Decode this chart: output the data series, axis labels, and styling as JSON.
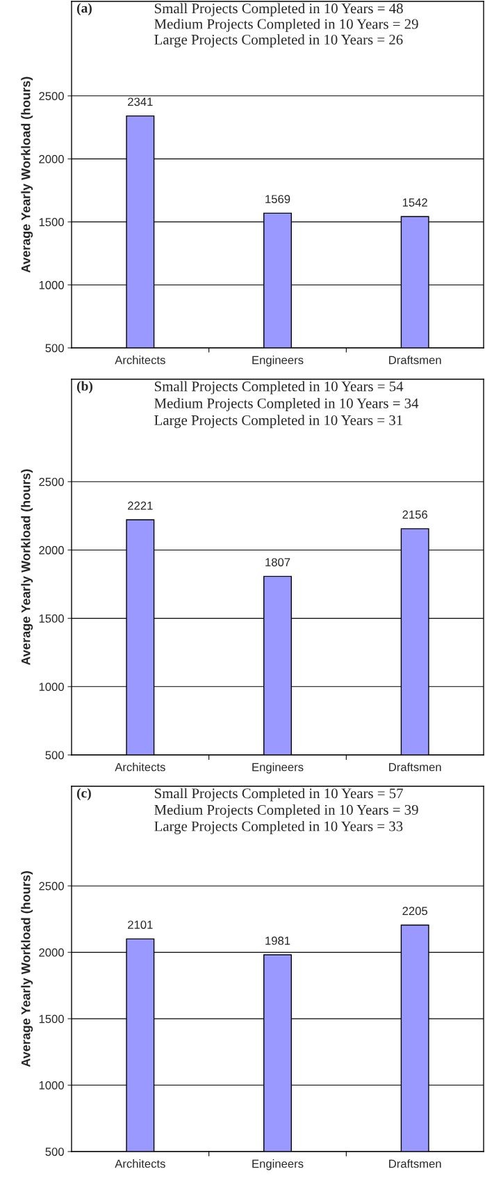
{
  "chart_data": [
    {
      "type": "bar",
      "title": "(a)",
      "ylabel": "Average Yearly Workload (hours)",
      "categories": [
        "Architects",
        "Engineers",
        "Draftsmen"
      ],
      "series": [
        {
          "color": "#9999ff",
          "values": [
            2341,
            1569,
            1542
          ]
        }
      ],
      "data_labels": true,
      "ylim": [
        500,
        3250
      ],
      "yticks": [
        500,
        1000,
        1500,
        2000,
        2500
      ],
      "grid": "y",
      "annotations": [
        "Small Projects Completed in 10 Years = 48",
        "Medium Projects Completed in 10 Years = 29",
        "Large Projects Completed in 10 Years = 26"
      ]
    },
    {
      "type": "bar",
      "title": "(b)",
      "ylabel": "Average Yearly Workload (hours)",
      "categories": [
        "Architects",
        "Engineers",
        "Draftsmen"
      ],
      "series": [
        {
          "color": "#9999ff",
          "values": [
            2221,
            1807,
            2156
          ]
        }
      ],
      "data_labels": true,
      "ylim": [
        500,
        3250
      ],
      "yticks": [
        500,
        1000,
        1500,
        2000,
        2500
      ],
      "grid": "y",
      "annotations": [
        "Small Projects Completed in 10 Years = 54",
        "Medium Projects Completed in 10 Years = 34",
        "Large Projects Completed in 10 Years = 31"
      ]
    },
    {
      "type": "bar",
      "title": "(c)",
      "ylabel": "Average Yearly Workload (hours)",
      "categories": [
        "Architects",
        "Engineers",
        "Draftsmen"
      ],
      "series": [
        {
          "color": "#9999ff",
          "values": [
            2101,
            1981,
            2205
          ]
        }
      ],
      "data_labels": true,
      "ylim": [
        500,
        3250
      ],
      "yticks": [
        500,
        1000,
        1500,
        2000,
        2500
      ],
      "grid": "y",
      "annotations": [
        "Small Projects Completed in 10 Years = 57",
        "Medium Projects Completed in 10 Years = 39",
        "Large Projects Completed in 10 Years = 33"
      ]
    }
  ]
}
